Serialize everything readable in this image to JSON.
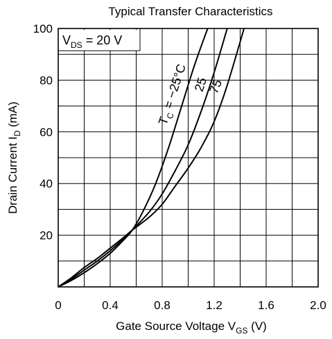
{
  "chart_data": {
    "type": "line",
    "title": "Typical Transfer Characteristics",
    "xlabel": {
      "main": "Gate Source Voltage  V",
      "sub": "GS",
      "unit": "  (V)"
    },
    "ylabel": {
      "main": "Drain Current  I",
      "sub": "D",
      "unit": "  (mA)"
    },
    "xlim": [
      0,
      2.0
    ],
    "ylim": [
      0,
      100
    ],
    "grid": true,
    "x_ticks": [
      {
        "value": 0,
        "label": "0"
      },
      {
        "value": 0.4,
        "label": "0.4"
      },
      {
        "value": 0.8,
        "label": "0.8"
      },
      {
        "value": 1.2,
        "label": "1.2"
      },
      {
        "value": 1.6,
        "label": "1.6"
      },
      {
        "value": 2.0,
        "label": "2.0"
      }
    ],
    "y_ticks": [
      {
        "value": 20,
        "label": "20"
      },
      {
        "value": 40,
        "label": "40"
      },
      {
        "value": 60,
        "label": "60"
      },
      {
        "value": 80,
        "label": "80"
      },
      {
        "value": 100,
        "label": "100"
      }
    ],
    "condition": {
      "main": "V",
      "sub": "DS",
      "rest": " = 20 V"
    },
    "series": [
      {
        "label": {
          "main": "T",
          "sub": "C",
          "rest": " = −25°C"
        },
        "x": [
          0.0,
          0.1,
          0.2,
          0.3,
          0.4,
          0.5,
          0.57,
          0.65,
          0.75,
          0.85,
          0.95,
          1.05,
          1.15
        ],
        "y": [
          0,
          2.5,
          5.5,
          9,
          13,
          18,
          22,
          29,
          40,
          54,
          70,
          86,
          100
        ]
      },
      {
        "label": {
          "main": "25",
          "sub": "",
          "rest": ""
        },
        "x": [
          0.0,
          0.1,
          0.2,
          0.3,
          0.4,
          0.5,
          0.57,
          0.7,
          0.8,
          0.9,
          1.0,
          1.1,
          1.2,
          1.3
        ],
        "y": [
          0,
          3,
          6.5,
          10,
          14,
          18.5,
          22,
          29,
          36,
          45,
          55,
          68,
          83,
          100
        ]
      },
      {
        "label": {
          "main": "75",
          "sub": "",
          "rest": ""
        },
        "x": [
          0.0,
          0.1,
          0.2,
          0.3,
          0.4,
          0.5,
          0.57,
          0.7,
          0.8,
          0.9,
          1.0,
          1.1,
          1.2,
          1.3,
          1.43
        ],
        "y": [
          0,
          3.5,
          7.5,
          11,
          15,
          19,
          22,
          27,
          32,
          39,
          46,
          54,
          64,
          78,
          100
        ]
      }
    ]
  }
}
